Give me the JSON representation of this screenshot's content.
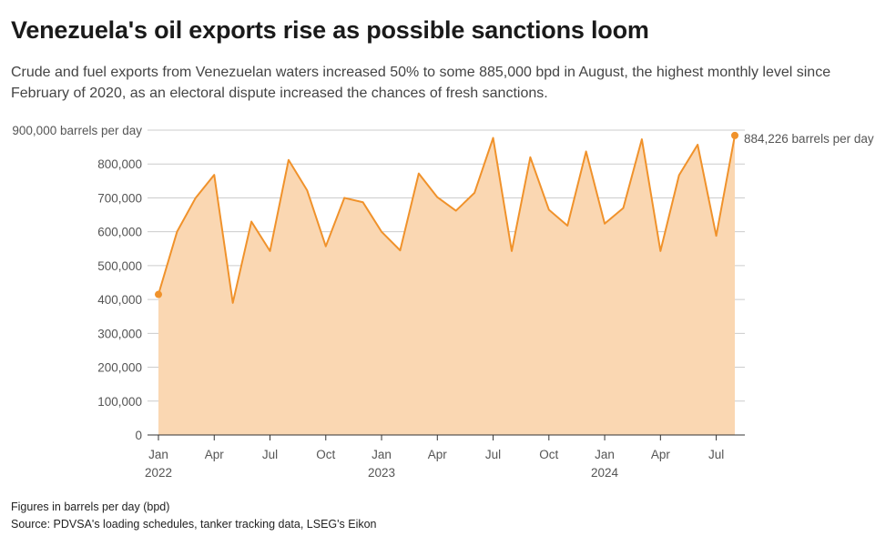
{
  "header": {
    "title": "Venezuela's oil exports rise as possible sanctions loom",
    "subtitle": "Crude and fuel exports from Venezuelan waters increased 50% to some 885,000 bpd in August, the highest monthly level since February of 2020, as an electoral dispute increased the chances of fresh sanctions."
  },
  "footer": {
    "note": "Figures in barrels per day (bpd)",
    "source": "Source: PDVSA's loading schedules, tanker tracking data, LSEG's Eikon"
  },
  "colors": {
    "line": "#f0922b",
    "fill": "#fad7b2",
    "grid": "#cccccc",
    "axis": "#333333",
    "text": "#555555"
  },
  "chart_data": {
    "type": "area",
    "title": "Venezuela's oil exports rise as possible sanctions loom",
    "ylabel": "barrels per day",
    "ylim": [
      0,
      900000
    ],
    "yticks": [
      0,
      100000,
      200000,
      300000,
      400000,
      500000,
      600000,
      700000,
      800000,
      900000
    ],
    "ytick_labels": [
      "0",
      "100,000",
      "200,000",
      "300,000",
      "400,000",
      "500,000",
      "600,000",
      "700,000",
      "800,000",
      "900,000 barrels per day"
    ],
    "x": [
      "2022-01",
      "2022-02",
      "2022-03",
      "2022-04",
      "2022-05",
      "2022-06",
      "2022-07",
      "2022-08",
      "2022-09",
      "2022-10",
      "2022-11",
      "2022-12",
      "2023-01",
      "2023-02",
      "2023-03",
      "2023-04",
      "2023-05",
      "2023-06",
      "2023-07",
      "2023-08",
      "2023-09",
      "2023-10",
      "2023-11",
      "2023-12",
      "2024-01",
      "2024-02",
      "2024-03",
      "2024-04",
      "2024-05",
      "2024-06",
      "2024-07",
      "2024-08"
    ],
    "values": [
      415000,
      600000,
      700000,
      768000,
      390000,
      630000,
      543000,
      812000,
      722000,
      557000,
      700000,
      687000,
      600000,
      545000,
      772000,
      702000,
      662000,
      715000,
      877000,
      543000,
      820000,
      665000,
      618000,
      837000,
      624000,
      670000,
      873000,
      543000,
      767000,
      857000,
      588000,
      884226
    ],
    "xtick_index": [
      0,
      3,
      6,
      9,
      12,
      15,
      18,
      21,
      24,
      27,
      30
    ],
    "xtick_labels": [
      "Jan",
      "Apr",
      "Jul",
      "Oct",
      "Jan",
      "Apr",
      "Jul",
      "Oct",
      "Jan",
      "Apr",
      "Jul"
    ],
    "xtick_years": [
      "2022",
      "",
      "",
      "",
      "2023",
      "",
      "",
      "",
      "2024",
      "",
      ""
    ],
    "annotations": [
      {
        "index": 31,
        "text": "884,226 barrels per day"
      }
    ]
  }
}
